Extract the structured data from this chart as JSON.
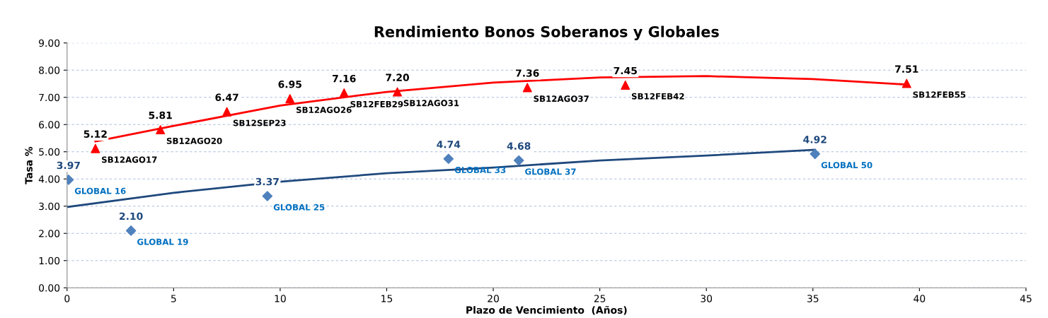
{
  "chart_data": {
    "type": "scatter",
    "title": "Rendimiento Bonos Soberanos y Globales",
    "xlabel": "Plazo de Vencimiento  (Años)",
    "ylabel": "Tasa %",
    "xlim": [
      0,
      45
    ],
    "xticks": [
      0,
      5,
      10,
      15,
      20,
      25,
      30,
      35,
      40,
      45
    ],
    "ylim": [
      0,
      9
    ],
    "yticks": [
      {
        "value": 0,
        "label": "0.00"
      },
      {
        "value": 1,
        "label": "1.00"
      },
      {
        "value": 2,
        "label": "2.00"
      },
      {
        "value": 3,
        "label": "3.00"
      },
      {
        "value": 4,
        "label": "4.00"
      },
      {
        "value": 5,
        "label": "5.00"
      },
      {
        "value": 6,
        "label": "6.00"
      },
      {
        "value": 7,
        "label": "7.00"
      },
      {
        "value": 8,
        "label": "8.00"
      },
      {
        "value": 9,
        "label": "9.00"
      }
    ],
    "grid": "y",
    "legend": false,
    "series": [
      {
        "type": "line",
        "color": "#ff0000",
        "marker": "none",
        "x": [
          1.33,
          5,
          10,
          15,
          20,
          25,
          30,
          35,
          39.4
        ],
        "values": [
          5.38,
          5.95,
          6.7,
          7.2,
          7.54,
          7.73,
          7.78,
          7.67,
          7.47
        ]
      },
      {
        "type": "line",
        "color": "#1f497d",
        "marker": "none",
        "x": [
          0,
          5,
          10,
          15,
          20,
          25,
          30,
          35.1
        ],
        "values": [
          2.97,
          3.49,
          3.9,
          4.21,
          4.42,
          4.68,
          4.86,
          5.07
        ]
      },
      {
        "color": "#ff0000",
        "marker": "triangle",
        "x": [
          1.33,
          4.38,
          7.5,
          10.46,
          13.0,
          15.5,
          21.6,
          26.2,
          39.4
        ],
        "values": [
          5.12,
          5.81,
          6.47,
          6.95,
          7.16,
          7.2,
          7.36,
          7.45,
          7.51
        ],
        "value_labels": [
          "5.12",
          "5.81",
          "6.47",
          "6.95",
          "7.16",
          "7.20",
          "7.36",
          "7.45",
          "7.51"
        ]
      },
      {
        "color": "#4f81bd",
        "marker": "diamond",
        "x": [
          0.07,
          3.0,
          9.4,
          17.9,
          21.2,
          35.1
        ],
        "values": [
          3.97,
          2.1,
          3.37,
          4.74,
          4.68,
          4.92
        ],
        "value_labels": [
          "3.97",
          "2.10",
          "3.37",
          "4.74",
          "4.68",
          "4.92"
        ]
      }
    ],
    "annotations": [
      {
        "text": "SB12AGO17",
        "x": 1.33,
        "y": 5.12
      },
      {
        "text": "SB12AGO20",
        "x": 4.38,
        "y": 5.81
      },
      {
        "text": "SB12SEP23",
        "x": 7.5,
        "y": 6.47
      },
      {
        "text": "SB12AGO26",
        "x": 10.46,
        "y": 6.95
      },
      {
        "text": "SB12FEB29",
        "x": 13.0,
        "y": 7.16
      },
      {
        "text": "SB12AGO31",
        "x": 15.5,
        "y": 7.2
      },
      {
        "text": "SB12AGO37",
        "x": 21.6,
        "y": 7.36
      },
      {
        "text": "SB12FEB42",
        "x": 26.2,
        "y": 7.45
      },
      {
        "text": "SB12FEB55",
        "x": 39.4,
        "y": 7.51
      },
      {
        "text": "GLOBAL 16",
        "x": 0.07,
        "y": 3.97
      },
      {
        "text": "GLOBAL 19",
        "x": 3.0,
        "y": 2.1
      },
      {
        "text": "GLOBAL 25",
        "x": 9.4,
        "y": 3.37
      },
      {
        "text": "GLOBAL 33",
        "x": 17.9,
        "y": 4.74
      },
      {
        "text": "GLOBAL 37",
        "x": 21.2,
        "y": 4.68
      },
      {
        "text": "GLOBAL 50",
        "x": 35.1,
        "y": 4.92
      }
    ]
  }
}
